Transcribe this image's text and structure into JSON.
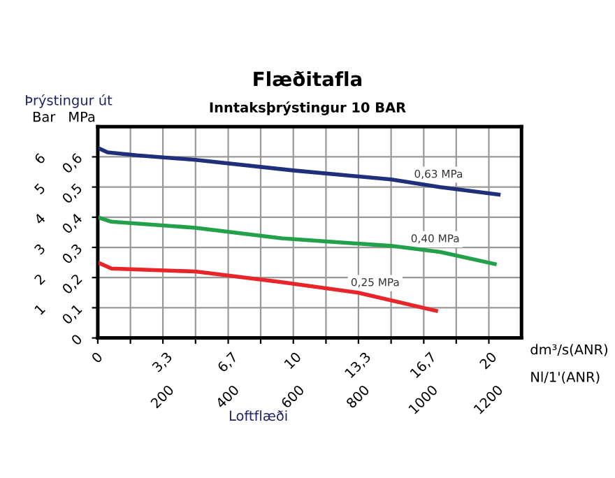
{
  "chart_data": {
    "type": "line",
    "title": "Flæðitafla",
    "subtitle": "Inntaksþrýstingur 10 BAR",
    "xlabel": "dm³/s(ANR)",
    "x2label": "Nl/1'(ANR)",
    "ylabel": "MPa",
    "y2label": "Bar",
    "annotations": [
      "Þrýstingur út",
      "Loftflæði"
    ],
    "xlim": [
      0,
      21.67
    ],
    "xticks": [
      {
        "value": 0,
        "label": "0"
      },
      {
        "value": 1.67,
        "label": null
      },
      {
        "value": 3.33,
        "label": "3,3"
      },
      {
        "value": 5,
        "label": null
      },
      {
        "value": 6.67,
        "label": "6,7"
      },
      {
        "value": 8.33,
        "label": null
      },
      {
        "value": 10,
        "label": "10"
      },
      {
        "value": 11.67,
        "label": null
      },
      {
        "value": 13.33,
        "label": "13,3"
      },
      {
        "value": 15,
        "label": null
      },
      {
        "value": 16.67,
        "label": "16,7"
      },
      {
        "value": 18.33,
        "label": null
      },
      {
        "value": 20,
        "label": "20"
      }
    ],
    "x2lim": [
      0,
      1300
    ],
    "x2ticks": [
      200,
      400,
      600,
      800,
      1000,
      1200
    ],
    "ylim": [
      0,
      0.7
    ],
    "yticks": [
      {
        "value": 0,
        "label": "0"
      },
      {
        "value": 0.1,
        "label": "0,1"
      },
      {
        "value": 0.2,
        "label": "0,2"
      },
      {
        "value": 0.3,
        "label": "0,3"
      },
      {
        "value": 0.4,
        "label": "0,4"
      },
      {
        "value": 0.5,
        "label": "0,5"
      },
      {
        "value": 0.6,
        "label": "0,6"
      }
    ],
    "y2lim": [
      0,
      7
    ],
    "y2ticks": [
      1,
      2,
      3,
      4,
      5,
      6
    ],
    "grid": true,
    "marker": "none",
    "line_style": "solid",
    "series": [
      {
        "name": "0,63 MPa",
        "color": "#1f2f7a",
        "x": [
          0,
          0.5,
          2,
          5,
          10,
          15,
          17.5,
          20.5
        ],
        "values": [
          0.63,
          0.615,
          0.605,
          0.59,
          0.555,
          0.525,
          0.5,
          0.475
        ]
      },
      {
        "name": "0,40 MPa",
        "color": "#22a04a",
        "x": [
          0,
          0.7,
          5,
          9.4,
          15,
          17.5,
          20.3
        ],
        "values": [
          0.4,
          0.385,
          0.365,
          0.33,
          0.305,
          0.285,
          0.245
        ]
      },
      {
        "name": "0,25 MPa",
        "color": "#e8262a",
        "x": [
          0,
          0.7,
          5,
          9.4,
          13.3,
          17.3
        ],
        "values": [
          0.25,
          0.23,
          0.22,
          0.185,
          0.15,
          0.09
        ]
      }
    ]
  }
}
